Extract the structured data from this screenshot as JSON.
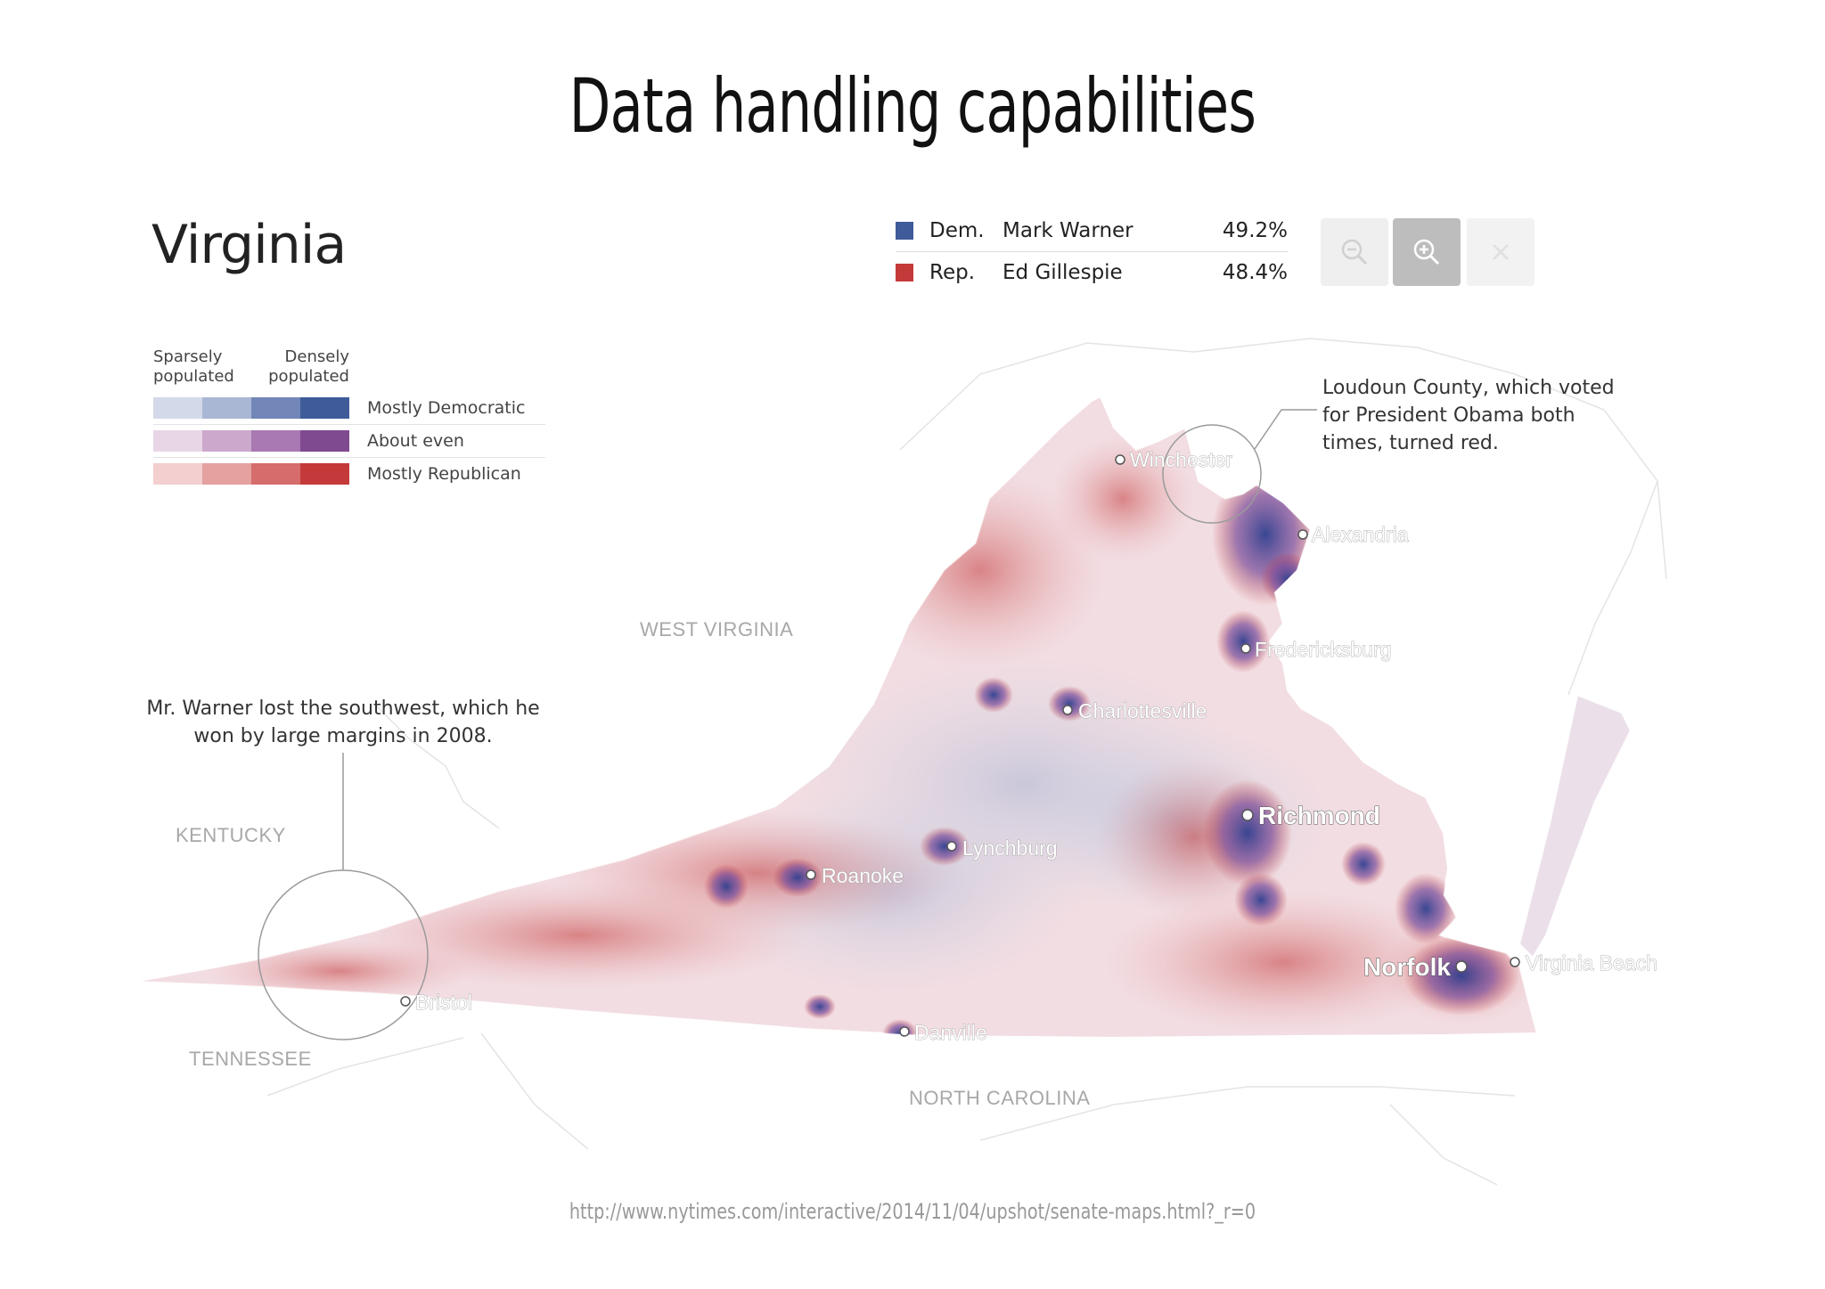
{
  "slide_title": "Data handling capabilities",
  "map_title": "Virginia",
  "results": [
    {
      "party": "Dem.",
      "candidate": "Mark Warner",
      "percent": "49.2%",
      "color": "#3f5b9a"
    },
    {
      "party": "Rep.",
      "candidate": "Ed Gillespie",
      "percent": "48.4%",
      "color": "#c43a3a"
    }
  ],
  "zoom_controls": {
    "zoom_out_icon": "zoom-out-icon",
    "zoom_in_icon": "zoom-in-icon",
    "close_icon": "close-icon"
  },
  "legend": {
    "sparse_label": "Sparsely populated",
    "dense_label": "Densely populated",
    "rows": [
      {
        "label": "Mostly Democratic",
        "colors": [
          "#d3d9e8",
          "#a9b6d4",
          "#7286b8",
          "#3f5b9a"
        ]
      },
      {
        "label": "About even",
        "colors": [
          "#e8d6e6",
          "#cda8cd",
          "#a879b2",
          "#7f4a8f"
        ]
      },
      {
        "label": "Mostly Republican",
        "colors": [
          "#f3cfcf",
          "#e5a0a0",
          "#d66c6c",
          "#c43a3a"
        ]
      }
    ]
  },
  "callouts": {
    "loudoun": "Loudoun County, which voted for President Obama both times, turned red.",
    "southwest": "Mr. Warner lost the southwest, which he won by large margins in 2008."
  },
  "neighbor_states": [
    "WEST VIRGINIA",
    "KENTUCKY",
    "TENNESSEE",
    "NORTH CAROLINA"
  ],
  "cities": [
    "Winchester",
    "Alexandria",
    "Fredericksburg",
    "Charlottesville",
    "Richmond",
    "Lynchburg",
    "Roanoke",
    "Norfolk",
    "Virginia Beach",
    "Bristol",
    "Danville"
  ],
  "source_url": "http://www.nytimes.com/interactive/2014/11/04/upshot/senate-maps.html?_r=0"
}
